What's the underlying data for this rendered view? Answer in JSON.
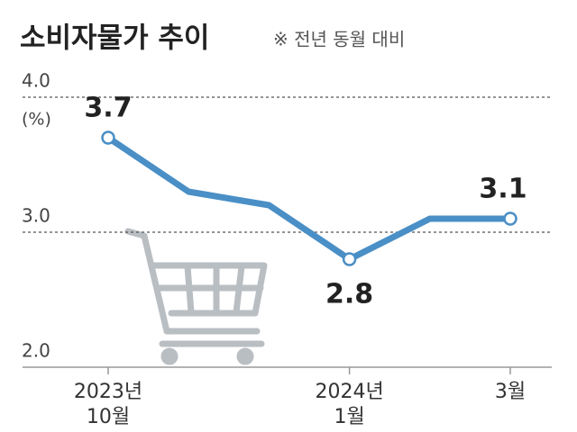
{
  "chart_data": {
    "type": "line",
    "title": "소비자물가 추이",
    "subtitle": "※ 전년 동월 대비",
    "y_unit_label": "(%)",
    "categories": [
      "2023년\n10월",
      null,
      null,
      "2024년\n1월",
      null,
      "3월"
    ],
    "series": [
      {
        "color": "#4a8fc6",
        "values": [
          3.7,
          3.3,
          3.2,
          2.8,
          3.1,
          3.1
        ],
        "value_labels": [
          "3.7",
          null,
          null,
          "2.8",
          null,
          "3.1"
        ]
      }
    ],
    "ylim": [
      2.0,
      4.0
    ],
    "yticks": [
      {
        "value": 2.0,
        "label": "2.0"
      },
      {
        "value": 3.0,
        "label": "3.0"
      },
      {
        "value": 4.0,
        "label": "4.0"
      }
    ],
    "grid": true
  }
}
